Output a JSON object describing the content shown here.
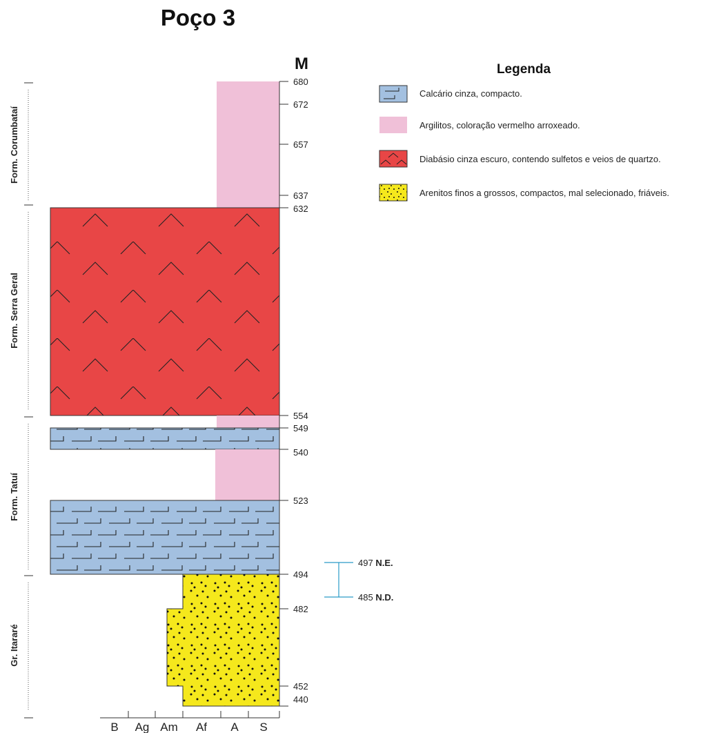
{
  "title": "Poço 3",
  "depth_unit": "M",
  "legend": {
    "title": "Legenda",
    "items": [
      {
        "pattern": "limestone",
        "label": "Calcário cinza, compacto.",
        "color": "#a3c0e0"
      },
      {
        "pattern": "claystone",
        "label": "Argilitos, coloração vermelho arroxeado.",
        "color": "#f0c0d8"
      },
      {
        "pattern": "diabase",
        "label": "Diabásio cinza escuro, contendo sulfetos e veios de quartzo.",
        "color": "#e84646"
      },
      {
        "pattern": "sandstone",
        "label": "Arenitos finos a grossos, compactos, mal selecionado, friáveis.",
        "color": "#f5e81c"
      }
    ]
  },
  "depth_labels": [
    "680",
    "672",
    "657",
    "637",
    "632",
    "554",
    "549",
    "540",
    "523",
    "494",
    "482",
    "452",
    "440"
  ],
  "formations": [
    {
      "name": "Form. Corumbataí"
    },
    {
      "name": "Form. Serra Geral"
    },
    {
      "name": "Form. Tatuí"
    },
    {
      "name": "Gr. Itararé"
    }
  ],
  "grain_scale": [
    "B",
    "Ag",
    "Am",
    "Af",
    "A",
    "S"
  ],
  "water_levels": [
    {
      "value": "497",
      "label": "N.E."
    },
    {
      "value": "485",
      "label": "N.D."
    }
  ],
  "colors": {
    "water_line": "#2a9bc8",
    "outline": "#333333"
  }
}
